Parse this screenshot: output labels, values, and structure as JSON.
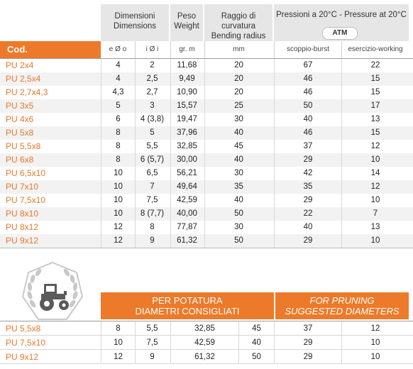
{
  "header": {
    "dimensions": [
      "Dimensioni",
      "Dimensions"
    ],
    "weight": [
      "Peso",
      "Weight"
    ],
    "bending": [
      "Raggio di curvatura",
      "Bending radius"
    ],
    "pressure": "Pressioni a 20°C - Pressure at 20°C",
    "atm": "ATM",
    "cod": "Cod.",
    "outer_d": "e Ø o",
    "inner_d": "i Ø i",
    "weight_unit": "gr. m",
    "mm": "mm",
    "burst": "scoppio-burst",
    "working": "esercizio-working"
  },
  "rows": [
    {
      "code": "PU 2x4",
      "od": "4",
      "id": "2",
      "weight": "11,68",
      "radius": "20",
      "burst": "67",
      "working": "22"
    },
    {
      "code": "PU 2,5x4",
      "od": "4",
      "id": "2,5",
      "weight": "9,49",
      "radius": "20",
      "burst": "46",
      "working": "15"
    },
    {
      "code": "PU 2,7x4,3",
      "od": "4,3",
      "id": "2,7",
      "weight": "10,90",
      "radius": "20",
      "burst": "46",
      "working": "15"
    },
    {
      "code": "PU 3x5",
      "od": "5",
      "id": "3",
      "weight": "15,57",
      "radius": "25",
      "burst": "50",
      "working": "17"
    },
    {
      "code": "PU 4x6",
      "od": "6",
      "id": "4 (3,8)",
      "weight": "19,47",
      "radius": "30",
      "burst": "40",
      "working": "13"
    },
    {
      "code": "PU 5x8",
      "od": "8",
      "id": "5",
      "weight": "37,96",
      "radius": "40",
      "burst": "46",
      "working": "15"
    },
    {
      "code": "PU 5,5x8",
      "od": "8",
      "id": "5,5",
      "weight": "32,85",
      "radius": "45",
      "burst": "37",
      "working": "12"
    },
    {
      "code": "PU 6x8",
      "od": "8",
      "id": "6 (5,7)",
      "weight": "30,00",
      "radius": "40",
      "burst": "29",
      "working": "10"
    },
    {
      "code": "PU 6,5x10",
      "od": "10",
      "id": "6,5",
      "weight": "56,21",
      "radius": "30",
      "burst": "42",
      "working": "14"
    },
    {
      "code": "PU 7x10",
      "od": "10",
      "id": "7",
      "weight": "49,64",
      "radius": "35",
      "burst": "35",
      "working": "12"
    },
    {
      "code": "PU 7,5x10",
      "od": "10",
      "id": "7,5",
      "weight": "42,59",
      "radius": "40",
      "burst": "29",
      "working": "10"
    },
    {
      "code": "PU 8x10",
      "od": "10",
      "id": "8 (7,7)",
      "weight": "40,00",
      "radius": "50",
      "burst": "22",
      "working": "7"
    },
    {
      "code": "PU 8x12",
      "od": "12",
      "id": "8",
      "weight": "77,87",
      "radius": "30",
      "burst": "40",
      "working": "13"
    },
    {
      "code": "PU 9x12",
      "od": "12",
      "id": "9",
      "weight": "61,32",
      "radius": "50",
      "burst": "29",
      "working": "10"
    }
  ],
  "pruning": {
    "it_line1": "PER POTATURA",
    "it_line2": "DIAMETRI CONSIGLIATI",
    "en_line1": "FOR PRUNING",
    "en_line2": "SUGGESTED DIAMETERS",
    "rows": [
      {
        "code": "PU 5,5x8",
        "od": "8",
        "id": "5,5",
        "weight": "32,85",
        "radius": "45",
        "burst": "37",
        "working": "12"
      },
      {
        "code": "PU 7,5x10",
        "od": "10",
        "id": "7,5",
        "weight": "42,59",
        "radius": "40",
        "burst": "29",
        "working": "10"
      },
      {
        "code": "PU 9x12",
        "od": "12",
        "id": "9",
        "weight": "61,32",
        "radius": "50",
        "burst": "29",
        "working": "10"
      }
    ]
  },
  "icons": {
    "tractor": "tractor-with-wheat-emblem-icon"
  },
  "colors": {
    "orange": "#ec7a2a",
    "header_gray": "#e6e6e6",
    "stripe": "#f2f2f2"
  }
}
